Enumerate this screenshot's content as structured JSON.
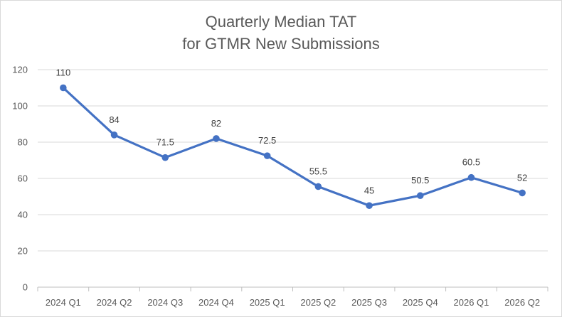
{
  "chart_data": {
    "type": "line",
    "title": [
      "Quarterly Median TAT",
      "for GTMR New Submissions"
    ],
    "xlabel": "",
    "ylabel": "",
    "categories": [
      "2024 Q1",
      "2024 Q2",
      "2024 Q3",
      "2024 Q4",
      "2025 Q1",
      "2025 Q2",
      "2025 Q3",
      "2025 Q4",
      "2026 Q1",
      "2026 Q2"
    ],
    "series": [
      {
        "values": [
          110,
          84,
          71.5,
          82,
          72.5,
          55.5,
          45,
          50.5,
          60.5,
          52
        ],
        "data_labels": [
          "110",
          "84",
          "71.5",
          "82",
          "72.5",
          "55.5",
          "45",
          "50.5",
          "60.5",
          "52"
        ],
        "color": "#4472c4"
      }
    ],
    "ylim": [
      0,
      120
    ],
    "yticks": [
      0,
      20,
      40,
      60,
      80,
      100,
      120
    ],
    "grid": true,
    "legend": "none",
    "colors": {
      "gridline": "#d9d9d9",
      "axis": "#bfbfbf",
      "text": "#595959"
    }
  }
}
